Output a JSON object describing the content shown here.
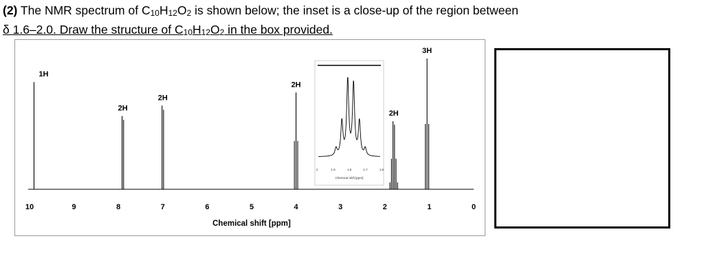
{
  "question": {
    "number": "(2)",
    "text_before": " The NMR spectrum of C",
    "text_after_formula": " is shown below; the inset is a close-up of the region between",
    "line2_start": "δ 1.6–2.0. Draw the structure of C",
    "line2_end": " in the box provided.",
    "formula_parts": [
      "10",
      "H",
      "12",
      "O",
      "2"
    ]
  },
  "chart_data": {
    "type": "line",
    "title": "",
    "xlabel": "Chemical shift [ppm]",
    "ylabel": "",
    "xlim": [
      10,
      0
    ],
    "x_reversed": true,
    "x_ticks": [
      "10",
      "9",
      "8",
      "7",
      "6",
      "5",
      "4",
      "3",
      "2",
      "1",
      "0"
    ],
    "grid": false,
    "series_color": "#000000",
    "peaks": [
      {
        "shift": 9.9,
        "integration": "1H",
        "multiplicity": "singlet",
        "relative_height": 0.82
      },
      {
        "shift": 7.9,
        "integration": "2H",
        "multiplicity": "doublet",
        "relative_height": 0.56
      },
      {
        "shift": 7.0,
        "integration": "2H",
        "multiplicity": "doublet",
        "relative_height": 0.64
      },
      {
        "shift": 4.0,
        "integration": "2H",
        "multiplicity": "triplet",
        "relative_height": 0.74
      },
      {
        "shift": 1.8,
        "integration": "2H",
        "multiplicity": "sextet",
        "relative_height": 0.52
      },
      {
        "shift": 1.05,
        "integration": "3H",
        "multiplicity": "triplet",
        "relative_height": 1.0
      }
    ],
    "inset": {
      "xlim": [
        2.0,
        1.6
      ],
      "x_ticks": [
        "2",
        "1.9",
        "1.8",
        "1.7",
        "1.6"
      ],
      "xlabel": "Chemical shift [ppm]",
      "multiplicity": "sextet"
    }
  }
}
